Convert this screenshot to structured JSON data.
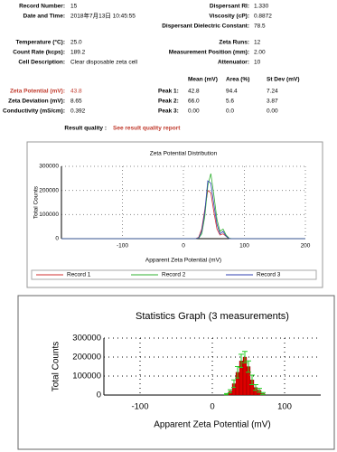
{
  "header": {
    "record_number_label": "Record Number:",
    "record_number": "15",
    "date_label": "Date and Time:",
    "date": "2018年7月13日 10:45:55",
    "ri_label": "Dispersant RI:",
    "ri": "1.330",
    "viscosity_label": "Viscosity (cP):",
    "viscosity": "0.8872",
    "dielectric_label": "Dispersant Dielectric Constant:",
    "dielectric": "78.5"
  },
  "params": {
    "temperature_label": "Temperature (°C):",
    "temperature": "25.0",
    "count_rate_label": "Count Rate (kcps):",
    "count_rate": "189.2",
    "cell_label": "Cell Description:",
    "cell": "Clear disposable zeta cell",
    "runs_label": "Zeta Runs:",
    "runs": "12",
    "position_label": "Measurement Position (mm):",
    "position": "2.00",
    "attenuator_label": "Attenuator:",
    "attenuator": "10"
  },
  "results": {
    "headers": [
      "Mean (mV)",
      "Area (%)",
      "St Dev (mV)"
    ],
    "rows": [
      {
        "label": "Zeta Potential (mV):",
        "value": "43.8",
        "peak": "Peak 1:",
        "cells": [
          "42.8",
          "94.4",
          "7.24"
        ]
      },
      {
        "label": "Zeta Deviation (mV):",
        "value": "8.65",
        "peak": "Peak 2:",
        "cells": [
          "66.0",
          "5.6",
          "3.87"
        ]
      },
      {
        "label": "Conductivity (mS/cm):",
        "value": "0.392",
        "peak": "Peak 3:",
        "cells": [
          "0.00",
          "0.0",
          "0.00"
        ]
      }
    ],
    "quality_label": "Result quality :",
    "quality": "See result quality report"
  },
  "chart_data": [
    {
      "type": "line",
      "title": "Zeta Potential Distribution",
      "x_label": "Apparent Zeta Potential (mV)",
      "y_label": "Total Counts",
      "x": [
        -200,
        0,
        10,
        20,
        25,
        30,
        35,
        40,
        45,
        50,
        55,
        60,
        65,
        70,
        75,
        80,
        90,
        200
      ],
      "series": [
        {
          "name": "Record 1",
          "color": "#d03030",
          "values": [
            0,
            0,
            0,
            0,
            5000,
            40000,
            120000,
            200000,
            190000,
            110000,
            40000,
            15000,
            20000,
            10000,
            0,
            0,
            0,
            0
          ]
        },
        {
          "name": "Record 2",
          "color": "#30b030",
          "values": [
            0,
            0,
            0,
            0,
            2000,
            20000,
            90000,
            220000,
            270000,
            180000,
            80000,
            30000,
            40000,
            15000,
            2000,
            0,
            0,
            0
          ]
        },
        {
          "name": "Record 3",
          "color": "#3040b0",
          "values": [
            0,
            0,
            0,
            0,
            3000,
            30000,
            110000,
            240000,
            230000,
            140000,
            60000,
            20000,
            30000,
            10000,
            0,
            0,
            0,
            0
          ]
        }
      ],
      "xlim": [
        -200,
        200
      ],
      "xticks": [
        -100,
        0,
        100,
        200
      ],
      "ylim": [
        0,
        300000
      ],
      "yticks": [
        0,
        100000,
        200000,
        300000
      ],
      "grid": true
    },
    {
      "type": "histogram",
      "title": "Statistics Graph (3 measurements)",
      "x_label": "Apparent Zeta Potential (mV)",
      "y_label": "Total Counts",
      "bins": [
        17.5,
        22.5,
        27.5,
        32.5,
        37.5,
        42.5,
        47.5,
        52.5,
        57.5,
        62.5,
        67.5,
        72.5
      ],
      "values": [
        5000,
        20000,
        60000,
        120000,
        180000,
        200000,
        150000,
        80000,
        40000,
        25000,
        8000
      ],
      "errors": [
        3000,
        8000,
        20000,
        30000,
        35000,
        30000,
        30000,
        25000,
        15000,
        10000,
        5000
      ],
      "color": "#dd0000",
      "error_color": "#22cc22",
      "xlim": [
        -150,
        150
      ],
      "xticks": [
        -100,
        0,
        100
      ],
      "ylim": [
        0,
        300000
      ],
      "yticks": [
        0,
        100000,
        200000,
        300000
      ],
      "grid": true
    }
  ]
}
